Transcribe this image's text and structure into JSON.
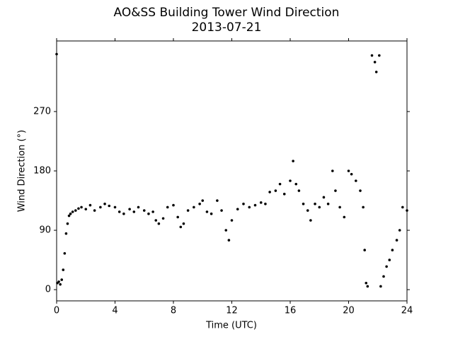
{
  "chart_data": {
    "type": "scatter",
    "title": "AO&SS Building Tower Wind Direction",
    "subtitle": "2013-07-21",
    "x_label": "Time (UTC)",
    "y_label": "Wind Direction (°)",
    "xlim": [
      0,
      24
    ],
    "xticks": [
      0,
      4,
      8,
      12,
      16,
      20,
      24
    ],
    "ylim": [
      -17,
      377
    ],
    "yticks": [
      0,
      90,
      180,
      270
    ],
    "series": [
      {
        "color": "#000000",
        "x": [
          0,
          0.05,
          0.15,
          0.25,
          0.35,
          0.45,
          0.55,
          0.65,
          0.75,
          0.85,
          0.95,
          1.1,
          1.3,
          1.5,
          1.7,
          2.0,
          2.3,
          2.6,
          3.0,
          3.3,
          3.6,
          4.0,
          4.3,
          4.6,
          5.0,
          5.3,
          5.6,
          6.0,
          6.3,
          6.6,
          6.8,
          7.0,
          7.3,
          7.6,
          8.0,
          8.3,
          8.5,
          8.7,
          9.0,
          9.4,
          9.8,
          10.0,
          10.3,
          10.6,
          11.0,
          11.3,
          11.6,
          11.8,
          12.0,
          12.4,
          12.8,
          13.2,
          13.6,
          14.0,
          14.3,
          14.6,
          15.0,
          15.3,
          15.6,
          16.0,
          16.2,
          16.4,
          16.6,
          16.9,
          17.2,
          17.4,
          17.7,
          18.0,
          18.3,
          18.6,
          18.9,
          19.1,
          19.4,
          19.7,
          20.0,
          20.2,
          20.5,
          20.8,
          21.0,
          21.1,
          21.2,
          21.3,
          21.6,
          21.8,
          21.9,
          22.1,
          22.2,
          22.4,
          22.6,
          22.8,
          23.0,
          23.3,
          23.5,
          23.7,
          24.0
        ],
        "y": [
          357,
          10,
          12,
          8,
          15,
          30,
          55,
          85,
          100,
          112,
          115,
          118,
          120,
          123,
          125,
          122,
          128,
          120,
          125,
          130,
          127,
          125,
          118,
          115,
          122,
          118,
          125,
          120,
          115,
          118,
          105,
          100,
          108,
          125,
          128,
          110,
          95,
          100,
          120,
          125,
          130,
          135,
          118,
          115,
          135,
          120,
          90,
          75,
          105,
          122,
          130,
          125,
          128,
          132,
          130,
          148,
          150,
          160,
          145,
          165,
          195,
          160,
          150,
          130,
          120,
          105,
          130,
          125,
          140,
          130,
          180,
          150,
          125,
          110,
          180,
          175,
          165,
          150,
          125,
          60,
          10,
          5,
          355,
          345,
          330,
          355,
          5,
          20,
          35,
          45,
          60,
          75,
          90,
          125,
          120
        ]
      }
    ]
  }
}
